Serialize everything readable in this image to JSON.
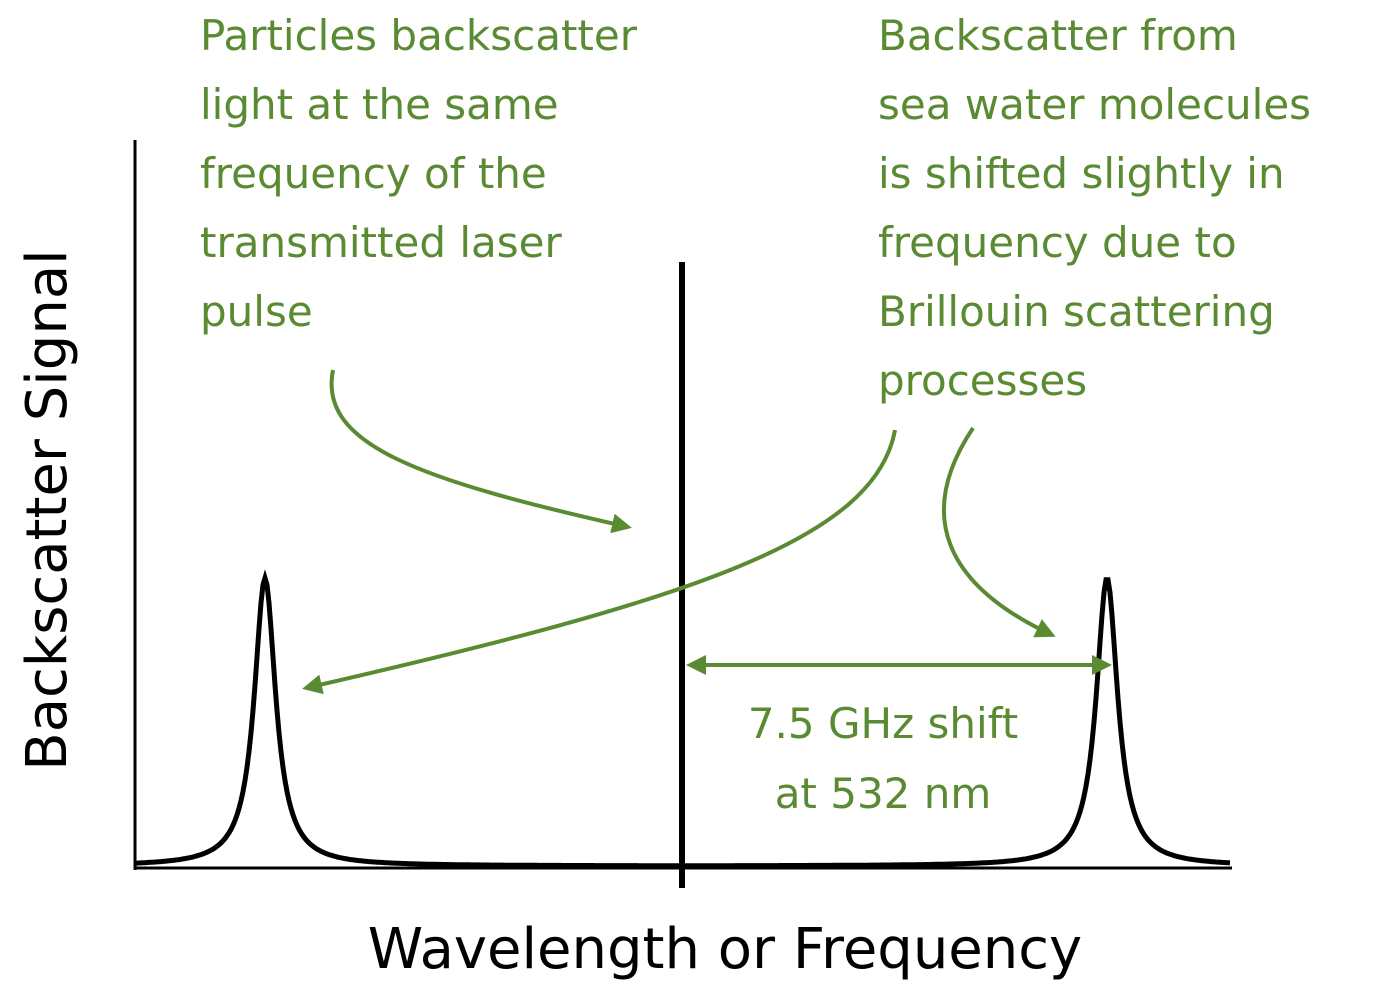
{
  "y_axis_label": "Backscatter Signal",
  "x_axis_label": "Wavelength or Frequency",
  "annotations": {
    "particles": [
      "Particles backscatter",
      "light at the same",
      "frequency of the",
      "transmitted laser",
      "pulse"
    ],
    "brillouin": [
      "Backscatter from",
      "sea water molecules",
      "is shifted slightly in",
      "frequency due to",
      "Brillouin scattering",
      "processes"
    ],
    "shift": [
      "7.5 GHz shift",
      "at 532 nm"
    ]
  }
}
